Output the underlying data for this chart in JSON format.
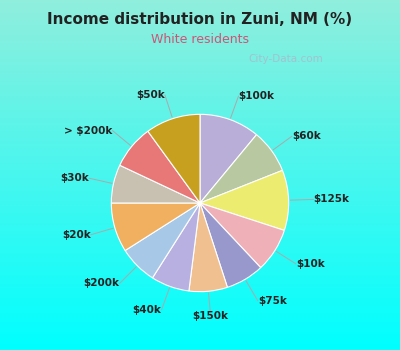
{
  "title": "Income distribution in Zuni, NM (%)",
  "subtitle": "White residents",
  "labels": [
    "$100k",
    "$60k",
    "$125k",
    "$10k",
    "$75k",
    "$150k",
    "$40k",
    "$200k",
    "$20k",
    "$30k",
    "> $200k",
    "$50k"
  ],
  "values": [
    11,
    8,
    11,
    8,
    7,
    7,
    7,
    7,
    9,
    7,
    8,
    10
  ],
  "colors": [
    "#b8aed8",
    "#b8c8a0",
    "#ecec70",
    "#f0b0b8",
    "#9898cc",
    "#f0c090",
    "#b8b0e0",
    "#a8c8e8",
    "#f0b060",
    "#c8c0b0",
    "#e87878",
    "#c8a020"
  ],
  "bg_top": "#00ffff",
  "bg_bottom": "#90ffcc",
  "title_color": "#222222",
  "subtitle_color": "#cc5577",
  "label_color": "#222222",
  "watermark": "City-Data.com",
  "watermark_color": "#aabbcc"
}
